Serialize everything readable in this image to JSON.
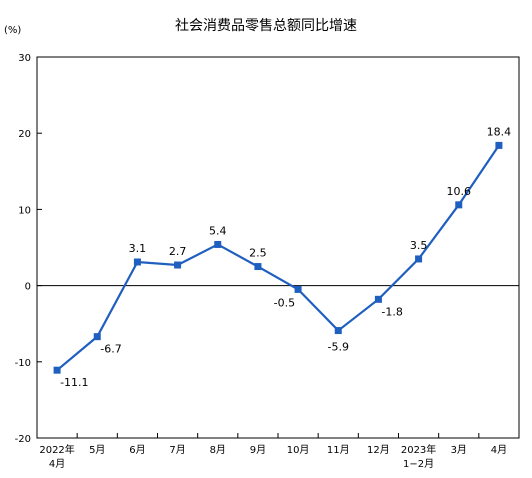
{
  "chart_data": {
    "type": "line",
    "title": "社会消费品零售总额同比增速",
    "unit_label": "(%)",
    "xlabel": "",
    "ylabel": "",
    "ylim": [
      -20,
      30
    ],
    "yticks": [
      30,
      20,
      10,
      0,
      -10,
      -20
    ],
    "categories": [
      {
        "line1": "2022年",
        "line2": "4月"
      },
      {
        "line1": "5月",
        "line2": ""
      },
      {
        "line1": "6月",
        "line2": ""
      },
      {
        "line1": "7月",
        "line2": ""
      },
      {
        "line1": "8月",
        "line2": ""
      },
      {
        "line1": "9月",
        "line2": ""
      },
      {
        "line1": "10月",
        "line2": ""
      },
      {
        "line1": "11月",
        "line2": ""
      },
      {
        "line1": "12月",
        "line2": ""
      },
      {
        "line1": "2023年",
        "line2": "1−2月"
      },
      {
        "line1": "3月",
        "line2": ""
      },
      {
        "line1": "4月",
        "line2": ""
      }
    ],
    "series": [
      {
        "values": [
          -11.1,
          -6.7,
          3.1,
          2.7,
          5.4,
          2.5,
          -0.5,
          -5.9,
          -1.8,
          3.5,
          10.6,
          18.4
        ],
        "labels": [
          "-11.1",
          "-6.7",
          "3.1",
          "2.7",
          "5.4",
          "2.5",
          "-0.5",
          "-5.9",
          "-1.8",
          "3.5",
          "10.6",
          "18.4"
        ],
        "label_sides": [
          "right",
          "right",
          "above",
          "above",
          "above",
          "above",
          "left",
          "below",
          "right",
          "above",
          "above",
          "above"
        ],
        "color": "#1f5fbf"
      }
    ],
    "grid": false,
    "legend": "none"
  }
}
